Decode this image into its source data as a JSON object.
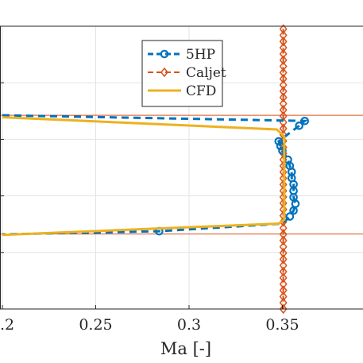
{
  "chart_data": {
    "type": "line",
    "title": "",
    "xlabel": "Ma [-]",
    "ylabel": "",
    "xlim": [
      0.2,
      0.395
    ],
    "ylim": [
      0,
      1
    ],
    "xticks": [
      0.2,
      0.25,
      0.3,
      0.35
    ],
    "xtick_labels": [
      ".2",
      "0.25",
      "0.3",
      "0.35"
    ],
    "yticks": [
      0.2,
      0.4,
      0.6,
      0.8
    ],
    "grid": true,
    "legend_position": "top-center",
    "reference_lines_y": [
      0.685,
      0.265
    ],
    "colors": {
      "reference": "#d95319",
      "fiveHP": "#0072bd",
      "caljet": "#d95319",
      "cfd": "#edb120"
    },
    "series": [
      {
        "name": "5HP",
        "style": "dashed-circle",
        "color": "#0072bd",
        "points": [
          {
            "x": 0.2,
            "y": 0.685
          },
          {
            "x": 0.362,
            "y": 0.665
          },
          {
            "x": 0.359,
            "y": 0.648
          },
          {
            "x": 0.348,
            "y": 0.593
          },
          {
            "x": 0.349,
            "y": 0.576
          },
          {
            "x": 0.35,
            "y": 0.56
          },
          {
            "x": 0.353,
            "y": 0.528
          },
          {
            "x": 0.354,
            "y": 0.506
          },
          {
            "x": 0.355,
            "y": 0.485
          },
          {
            "x": 0.355,
            "y": 0.463
          },
          {
            "x": 0.356,
            "y": 0.441
          },
          {
            "x": 0.356,
            "y": 0.418
          },
          {
            "x": 0.356,
            "y": 0.395
          },
          {
            "x": 0.357,
            "y": 0.372
          },
          {
            "x": 0.356,
            "y": 0.348
          },
          {
            "x": 0.354,
            "y": 0.327
          },
          {
            "x": 0.35,
            "y": 0.302
          },
          {
            "x": 0.284,
            "y": 0.275
          },
          {
            "x": 0.2,
            "y": 0.264
          }
        ],
        "markers_at": [
          1,
          2,
          3,
          4,
          5,
          6,
          7,
          8,
          9,
          10,
          11,
          12,
          13,
          14,
          15,
          17
        ]
      },
      {
        "name": "Caljet",
        "style": "dashed-diamond",
        "color": "#d95319",
        "points": [
          {
            "x": 0.3505,
            "y": 0.99
          },
          {
            "x": 0.3505,
            "y": 0.0
          }
        ],
        "marker_y": [
          0.99,
          0.968,
          0.946,
          0.924,
          0.902,
          0.88,
          0.858,
          0.836,
          0.814,
          0.792,
          0.77,
          0.748,
          0.726,
          0.704,
          0.682,
          0.66,
          0.638,
          0.616,
          0.594,
          0.572,
          0.55,
          0.528,
          0.506,
          0.484,
          0.462,
          0.44,
          0.418,
          0.396,
          0.374,
          0.352,
          0.33,
          0.308,
          0.286,
          0.264,
          0.242,
          0.22,
          0.198,
          0.176,
          0.154,
          0.132,
          0.11,
          0.088,
          0.066,
          0.044,
          0.022,
          0.0
        ]
      },
      {
        "name": "CFD",
        "style": "solid",
        "color": "#edb120",
        "points": [
          {
            "x": 0.2,
            "y": 0.678
          },
          {
            "x": 0.347,
            "y": 0.635
          },
          {
            "x": 0.351,
            "y": 0.61
          },
          {
            "x": 0.351,
            "y": 0.315
          },
          {
            "x": 0.348,
            "y": 0.302
          },
          {
            "x": 0.2,
            "y": 0.262
          }
        ]
      }
    ]
  }
}
